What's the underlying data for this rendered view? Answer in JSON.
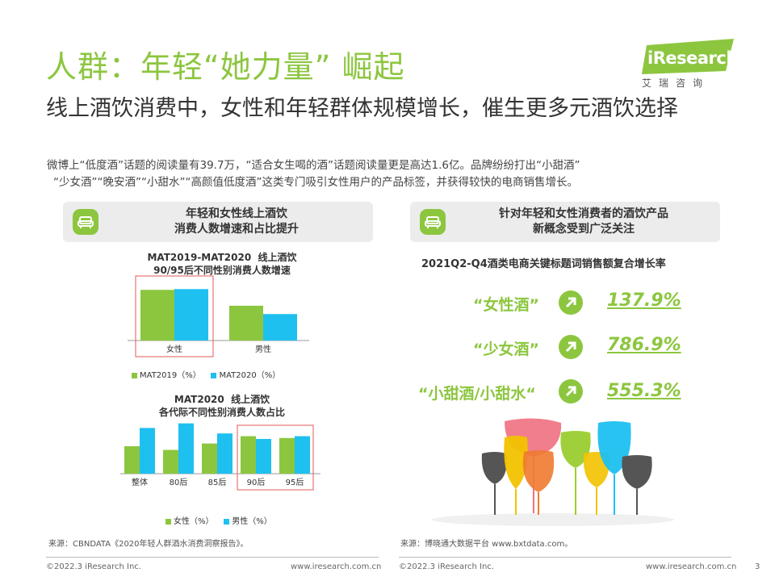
{
  "header": {
    "title": "人群：年轻“她力量” 崛起",
    "subtitle": "线上酒饮消费中，女性和年轻群体规模增长，催生更多元酒饮选择",
    "intro_line1": "微博上“低度酒”话题的阅读量有39.7万，“适合女生喝的酒”话题阅读量更是高达1.6亿。品牌纷纷打出“小甜酒”",
    "intro_line2": "“少女酒”“晚安酒”“小甜水”“高颜值低度酒”这类专门吸引女性用户的产品标签，并获得较快的电商销售增长。"
  },
  "logo": {
    "name": "iResearch",
    "sub": "艾瑞咨询"
  },
  "left_panel": {
    "line1": "年轻和女性线上酒饮",
    "line2": "消费人数增速和占比提升",
    "icon": "sofa-icon"
  },
  "right_panel": {
    "line1": "针对年轻和女性消费者的酒饮产品",
    "line2": "新概念受到广泛关注",
    "icon": "sofa-icon"
  },
  "colors": {
    "green": "#8cc63f",
    "blue": "#1ec0f0",
    "highlight": "#e05a5a"
  },
  "chart_data": [
    {
      "type": "bar",
      "title": "MAT2019-MAT2020  线上酒饮\n90/95后不同性别消费人数增速",
      "categories": [
        "女性",
        "男性"
      ],
      "series": [
        {
          "name": "MAT2019（%）",
          "values": [
            67,
            46
          ]
        },
        {
          "name": "MAT2020（%）",
          "values": [
            68,
            35
          ]
        }
      ],
      "ylim": [
        0,
        80
      ],
      "legend_position": "bottom",
      "highlight": [
        "女性"
      ]
    },
    {
      "type": "bar",
      "title": "MAT2020  线上酒饮\n各代际不同性别消费人数占比",
      "categories": [
        "整体",
        "80后",
        "85后",
        "90后",
        "95后"
      ],
      "series": [
        {
          "name": "女性（%）",
          "values": [
            30,
            26,
            33,
            41,
            39
          ]
        },
        {
          "name": "男性（%）",
          "values": [
            50,
            55,
            44,
            38,
            41
          ]
        }
      ],
      "ylim": [
        0,
        60
      ],
      "legend_position": "bottom",
      "highlight": [
        "90后",
        "95后"
      ]
    }
  ],
  "right_chart": {
    "title": "2021Q2-Q4酒类电商关键标题词销售额复合增长率",
    "items": [
      {
        "keyword": "“女性酒”",
        "value": "137.9%"
      },
      {
        "keyword": "“少女酒”",
        "value": "786.9%"
      },
      {
        "keyword": "“小甜酒/小甜水“",
        "value": "555.3%"
      }
    ],
    "icon": "arrow-up-right-icon"
  },
  "sources": {
    "left": "来源：CBNDATA《2020年轻人群酒水消费洞察报告》。",
    "right": "来源：博晓通大数据平台 www.bxtdata.com。"
  },
  "footer": {
    "copyright_left": "©2022.3 iResearch Inc.",
    "url_left": "www.iresearch.com.cn",
    "copyright_right": "©2022.3 iResearch Inc.",
    "url_right": "www.iresearch.com.cn",
    "page": "3"
  }
}
